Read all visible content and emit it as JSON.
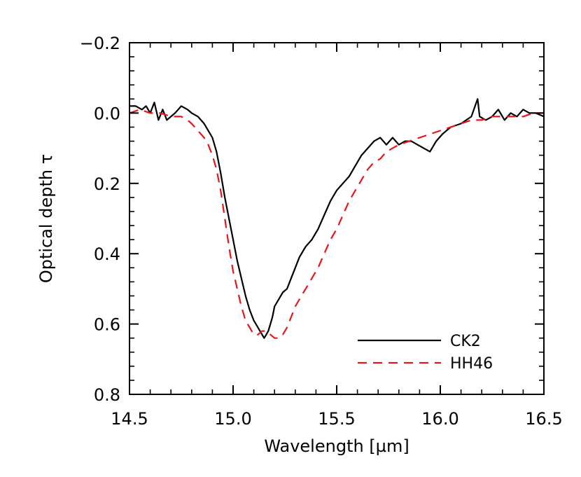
{
  "chart_data": {
    "type": "line",
    "xlabel": "Wavelength [µm]",
    "ylabel": "Optical depth τ",
    "xlim": [
      14.5,
      16.5
    ],
    "ylim": [
      -0.2,
      0.8
    ],
    "y_inverted": true,
    "x_ticks": [
      {
        "value": 14.5,
        "label": "14.5"
      },
      {
        "value": 15.0,
        "label": "15.0"
      },
      {
        "value": 15.5,
        "label": "15.5"
      },
      {
        "value": 16.0,
        "label": "16.0"
      },
      {
        "value": 16.5,
        "label": "16.5"
      }
    ],
    "y_ticks": [
      {
        "value": -0.2,
        "label": "−0.2"
      },
      {
        "value": 0.0,
        "label": "0.0"
      },
      {
        "value": 0.2,
        "label": "0.2"
      },
      {
        "value": 0.4,
        "label": "0.4"
      },
      {
        "value": 0.6,
        "label": "0.6"
      },
      {
        "value": 0.8,
        "label": "0.8"
      }
    ],
    "x_minor_step": 0.1,
    "y_minor_step": 0.04,
    "grid": false,
    "legend_position": "bottom-right",
    "series": [
      {
        "name": "CK2",
        "color": "#000000",
        "dash": "solid",
        "x": [
          14.5,
          14.53,
          14.56,
          14.58,
          14.6,
          14.62,
          14.64,
          14.66,
          14.68,
          14.7,
          14.72,
          14.75,
          14.78,
          14.8,
          14.83,
          14.86,
          14.88,
          14.9,
          14.92,
          14.94,
          14.96,
          14.98,
          15.0,
          15.02,
          15.04,
          15.06,
          15.08,
          15.1,
          15.12,
          15.14,
          15.15,
          15.16,
          15.17,
          15.18,
          15.19,
          15.2,
          15.22,
          15.24,
          15.26,
          15.28,
          15.3,
          15.32,
          15.35,
          15.38,
          15.41,
          15.44,
          15.47,
          15.5,
          15.53,
          15.56,
          15.59,
          15.62,
          15.65,
          15.68,
          15.71,
          15.74,
          15.77,
          15.8,
          15.83,
          15.86,
          15.89,
          15.92,
          15.95,
          15.98,
          16.01,
          16.05,
          16.1,
          16.15,
          16.18,
          16.19,
          16.22,
          16.25,
          16.28,
          16.31,
          16.34,
          16.37,
          16.4,
          16.43,
          16.46,
          16.5
        ],
        "y": [
          -0.02,
          -0.02,
          -0.01,
          -0.02,
          0.0,
          -0.03,
          0.02,
          -0.01,
          0.02,
          0.01,
          0.0,
          -0.02,
          -0.01,
          0.0,
          0.01,
          0.03,
          0.05,
          0.07,
          0.11,
          0.17,
          0.24,
          0.3,
          0.36,
          0.42,
          0.47,
          0.52,
          0.56,
          0.59,
          0.61,
          0.63,
          0.64,
          0.63,
          0.62,
          0.6,
          0.58,
          0.55,
          0.53,
          0.51,
          0.5,
          0.47,
          0.44,
          0.41,
          0.38,
          0.36,
          0.33,
          0.29,
          0.25,
          0.22,
          0.2,
          0.18,
          0.15,
          0.12,
          0.1,
          0.08,
          0.07,
          0.09,
          0.07,
          0.09,
          0.08,
          0.08,
          0.09,
          0.1,
          0.11,
          0.08,
          0.06,
          0.04,
          0.03,
          0.01,
          -0.04,
          0.01,
          0.02,
          0.01,
          -0.01,
          0.02,
          0.0,
          0.01,
          -0.01,
          0.0,
          0.0,
          0.01
        ]
      },
      {
        "name": "HH46",
        "color": "#e8161b",
        "dash": "dashed",
        "x": [
          14.5,
          14.55,
          14.6,
          14.65,
          14.7,
          14.75,
          14.78,
          14.8,
          14.83,
          14.86,
          14.88,
          14.9,
          14.92,
          14.94,
          14.96,
          14.98,
          15.0,
          15.02,
          15.04,
          15.06,
          15.08,
          15.1,
          15.12,
          15.14,
          15.16,
          15.18,
          15.2,
          15.22,
          15.24,
          15.26,
          15.28,
          15.3,
          15.32,
          15.35,
          15.38,
          15.41,
          15.44,
          15.47,
          15.5,
          15.53,
          15.56,
          15.59,
          15.62,
          15.65,
          15.68,
          15.71,
          15.74,
          15.77,
          15.8,
          15.85,
          15.9,
          15.95,
          16.0,
          16.05,
          16.1,
          16.15,
          16.2,
          16.25,
          16.3,
          16.35,
          16.4,
          16.45,
          16.5
        ],
        "y": [
          0.0,
          -0.01,
          0.0,
          0.0,
          0.01,
          0.01,
          0.02,
          0.03,
          0.05,
          0.07,
          0.09,
          0.12,
          0.16,
          0.22,
          0.3,
          0.38,
          0.45,
          0.5,
          0.55,
          0.59,
          0.61,
          0.63,
          0.63,
          0.62,
          0.62,
          0.63,
          0.64,
          0.64,
          0.63,
          0.61,
          0.58,
          0.55,
          0.53,
          0.5,
          0.47,
          0.44,
          0.4,
          0.36,
          0.33,
          0.29,
          0.25,
          0.22,
          0.19,
          0.16,
          0.14,
          0.13,
          0.11,
          0.1,
          0.09,
          0.08,
          0.07,
          0.06,
          0.05,
          0.04,
          0.03,
          0.02,
          0.02,
          0.01,
          0.01,
          0.01,
          0.01,
          0.0,
          0.0
        ]
      }
    ]
  }
}
